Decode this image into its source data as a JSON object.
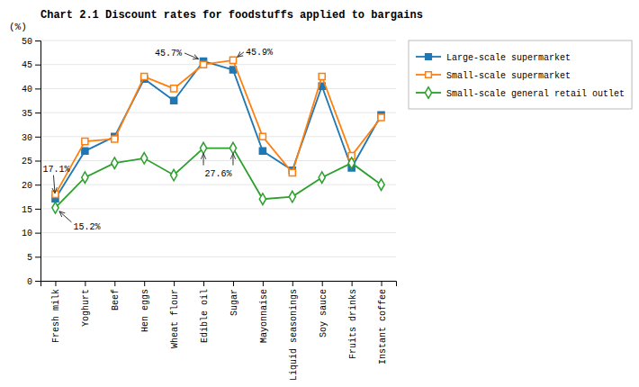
{
  "chart_data": {
    "type": "line",
    "title": "Chart 2.1 Discount rates for foodstuffs applied to bargains",
    "y_label": "(%)",
    "categories": [
      "Fresh milk",
      "Yoghurt",
      "Beef",
      "Hen eggs",
      "Wheat flour",
      "Edible oil",
      "Sugar",
      "Mayonnaise",
      "Liquid seasonings",
      "Soy sauce",
      "Fruits drinks",
      "Instant coffee"
    ],
    "series": [
      {
        "name": "Large-scale supermarket",
        "marker": "square",
        "values": [
          17.1,
          27.0,
          30.0,
          42.0,
          37.5,
          45.7,
          43.9,
          27.0,
          23.0,
          40.5,
          23.5,
          34.5
        ]
      },
      {
        "name": "Small-scale supermarket",
        "marker": "square-open",
        "values": [
          18.0,
          29.0,
          29.5,
          42.5,
          40.0,
          45.0,
          45.9,
          30.0,
          22.5,
          42.5,
          26.0,
          34.0
        ]
      },
      {
        "name": "Small-scale general retail outlet",
        "marker": "diamond-open",
        "values": [
          15.2,
          21.5,
          24.5,
          25.5,
          22.0,
          27.6,
          27.6,
          17.0,
          17.5,
          21.5,
          24.5,
          20.0
        ]
      }
    ],
    "ylim": [
      0,
      50
    ],
    "yticks": [
      0,
      5,
      10,
      15,
      20,
      25,
      30,
      35,
      40,
      45,
      50
    ],
    "grid": true,
    "legend": "right",
    "annotations": [
      {
        "text": "17.1%",
        "series": "Large-scale supermarket",
        "categories": [
          "Fresh milk"
        ]
      },
      {
        "text": "15.2%",
        "series": "Small-scale general retail outlet",
        "categories": [
          "Fresh milk"
        ]
      },
      {
        "text": "45.7%",
        "series": "Large-scale supermarket",
        "categories": [
          "Edible oil"
        ]
      },
      {
        "text": "45.9%",
        "series": "Small-scale supermarket",
        "categories": [
          "Sugar"
        ]
      },
      {
        "text": "27.6%",
        "series": "Small-scale general retail outlet",
        "categories": [
          "Edible oil",
          "Sugar"
        ]
      }
    ]
  }
}
